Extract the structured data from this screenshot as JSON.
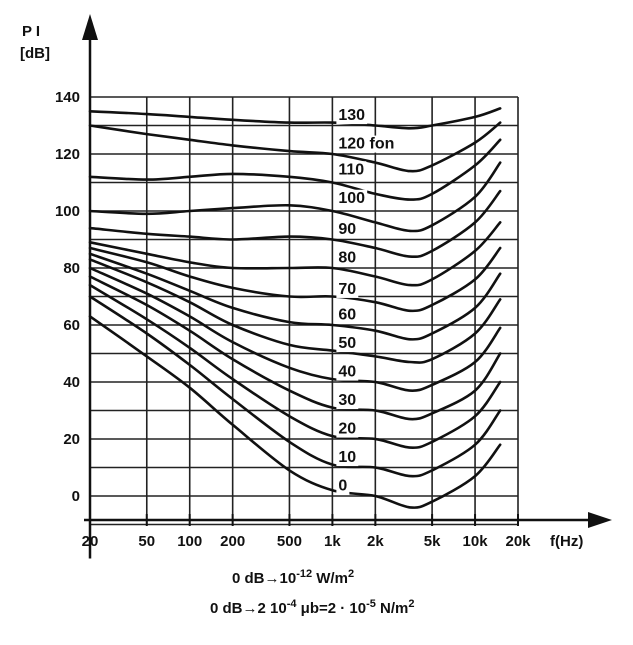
{
  "chart_data": {
    "type": "line",
    "title": "",
    "ylabel": "P I",
    "yunit": "[dB]",
    "xlabel": "f(Hz)",
    "xscale": "log",
    "xlim": [
      20,
      20000
    ],
    "ylim": [
      -10,
      145
    ],
    "grid": true,
    "x_ticks": [
      {
        "value": 20,
        "label": "20"
      },
      {
        "value": 50,
        "label": "50"
      },
      {
        "value": 100,
        "label": "100"
      },
      {
        "value": 200,
        "label": "200"
      },
      {
        "value": 500,
        "label": "500"
      },
      {
        "value": 1000,
        "label": "1k"
      },
      {
        "value": 2000,
        "label": "2k"
      },
      {
        "value": 5000,
        "label": "5k"
      },
      {
        "value": 10000,
        "label": "10k"
      },
      {
        "value": 20000,
        "label": "20k"
      }
    ],
    "y_ticks": [
      {
        "value": 0,
        "label": "0"
      },
      {
        "value": 20,
        "label": "20"
      },
      {
        "value": 40,
        "label": "40"
      },
      {
        "value": 60,
        "label": "60"
      },
      {
        "value": 80,
        "label": "80"
      },
      {
        "value": 100,
        "label": "100"
      },
      {
        "value": 120,
        "label": "120"
      },
      {
        "value": 140,
        "label": "140"
      }
    ],
    "x": [
      20,
      50,
      100,
      200,
      500,
      1000,
      2000,
      3500,
      5000,
      10000,
      15000
    ],
    "series": [
      {
        "name": "130",
        "label_x": 1000,
        "label_y": 134,
        "values": [
          135,
          134,
          133,
          132,
          131,
          131,
          130,
          129,
          130,
          133,
          136
        ]
      },
      {
        "name": "120 fon",
        "label_x": 1000,
        "label_y": 124,
        "values": [
          130,
          127,
          125,
          123,
          121,
          120,
          117,
          114,
          116,
          124,
          131
        ]
      },
      {
        "name": "110",
        "label_x": 1000,
        "label_y": 115,
        "values": [
          112,
          111,
          112,
          113,
          112,
          110,
          106,
          104,
          106,
          116,
          125
        ]
      },
      {
        "name": "100",
        "label_x": 1000,
        "label_y": 105,
        "values": [
          100,
          99,
          100,
          101,
          102,
          100,
          96,
          93,
          95,
          105,
          117
        ]
      },
      {
        "name": "90",
        "label_x": 1000,
        "label_y": 94,
        "values": [
          94,
          92,
          91,
          90,
          91,
          90,
          87,
          84,
          86,
          96,
          107
        ]
      },
      {
        "name": "80",
        "label_x": 1000,
        "label_y": 84,
        "values": [
          89,
          85,
          82,
          80,
          80,
          80,
          77,
          74,
          76,
          86,
          96
        ]
      },
      {
        "name": "70",
        "label_x": 1000,
        "label_y": 73,
        "values": [
          87,
          82,
          77,
          73,
          70,
          70,
          68,
          65,
          67,
          76,
          87
        ]
      },
      {
        "name": "60",
        "label_x": 1000,
        "label_y": 64,
        "values": [
          85,
          78,
          72,
          66,
          61,
          60,
          58,
          55,
          57,
          66,
          78
        ]
      },
      {
        "name": "50",
        "label_x": 1000,
        "label_y": 54,
        "values": [
          83,
          75,
          68,
          60,
          53,
          51,
          49,
          47,
          48,
          57,
          69
        ]
      },
      {
        "name": "40",
        "label_x": 1000,
        "label_y": 44,
        "values": [
          80,
          71,
          63,
          54,
          45,
          41,
          40,
          37,
          39,
          47,
          59
        ]
      },
      {
        "name": "30",
        "label_x": 1000,
        "label_y": 34,
        "values": [
          77,
          67,
          58,
          48,
          37,
          31,
          30,
          27,
          29,
          37,
          50
        ]
      },
      {
        "name": "20",
        "label_x": 1000,
        "label_y": 24,
        "values": [
          74,
          62,
          52,
          41,
          28,
          21,
          20,
          17,
          19,
          28,
          40
        ]
      },
      {
        "name": "10",
        "label_x": 1000,
        "label_y": 14,
        "values": [
          70,
          57,
          46,
          34,
          19,
          11,
          10,
          7,
          9,
          18,
          30
        ]
      },
      {
        "name": "0",
        "label_x": 1000,
        "label_y": 4,
        "values": [
          63,
          49,
          38,
          25,
          9,
          2,
          0,
          -4,
          -2,
          7,
          18
        ]
      }
    ]
  },
  "notes": {
    "line1_pre": "0 dB→10",
    "line1_exp": "-12",
    "line1_post": " W/m",
    "line1_unit_exp": "2",
    "line2_pre": "0 dB→2 10",
    "line2_exp": "-4",
    "line2_mid": " μb=2 · 10",
    "line2_exp2": "-5",
    "line2_post": " N/m",
    "line2_unit_exp": "2"
  }
}
